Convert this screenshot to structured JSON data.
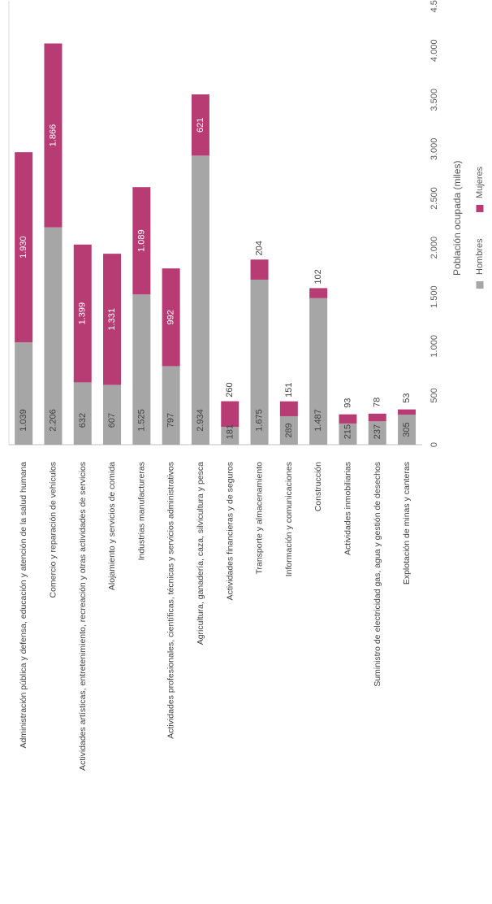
{
  "chart_data": {
    "type": "bar",
    "stacked": true,
    "orientation": "rotated -90° (vertical bars, labels read bottom-to-top)",
    "categories": [
      "Administración pública y defensa, educación y atención de la salud humana",
      "Comercio y reparación de vehículos",
      "Actividades artísticas, entretenimiento, recreación y otras actividades de servicios",
      "Alojamiento y servicios de comida",
      "Industrias manufactureras",
      "Actividades profesionales, científicas, técnicas y servicios administrativos",
      "Agricultura, ganadería, caza, silvicultura y pesca",
      "Actividades financieras y de seguros",
      "Transporte y almacenamiento",
      "Información y comunicaciones",
      "Construcción",
      "Actividades inmobiliarias",
      "Suministro de electricidad gas, agua y gestión de desechos",
      "Explotación de minas y canteras"
    ],
    "series": [
      {
        "name": "Hombres",
        "color": "#a6a6a6",
        "values": [
          1039,
          2206,
          632,
          607,
          1525,
          797,
          2934,
          181,
          1675,
          289,
          1487,
          215,
          237,
          305
        ],
        "labels": [
          "1.039",
          "2.206",
          "632",
          "607",
          "1.525",
          "797",
          "2.934",
          "181",
          "1.675",
          "289",
          "1.487",
          "215",
          "237",
          "305"
        ]
      },
      {
        "name": "Mujeres",
        "color": "#b83c74",
        "values": [
          1930,
          1866,
          1399,
          1331,
          1089,
          992,
          621,
          260,
          204,
          151,
          102,
          93,
          78,
          53
        ],
        "labels": [
          "1.930",
          "1.866",
          "1.399",
          "1.331",
          "1.089",
          "992",
          "621",
          "260",
          "204",
          "151",
          "102",
          "93",
          "78",
          "53"
        ]
      }
    ],
    "value_axis": {
      "label": "Población ocupada (miles)",
      "range": [
        0,
        4500
      ],
      "ticks": [
        0,
        500,
        1000,
        1500,
        2000,
        2500,
        3000,
        3500,
        4000,
        4500
      ],
      "tick_labels": [
        "0",
        "500",
        "1.000",
        "1.500",
        "2.000",
        "2.500",
        "3.000",
        "3.500",
        "4.000",
        "4.500"
      ]
    },
    "grid": false,
    "legend": {
      "position": "below axis title",
      "entries": [
        "Hombres",
        "Mujeres"
      ]
    }
  }
}
